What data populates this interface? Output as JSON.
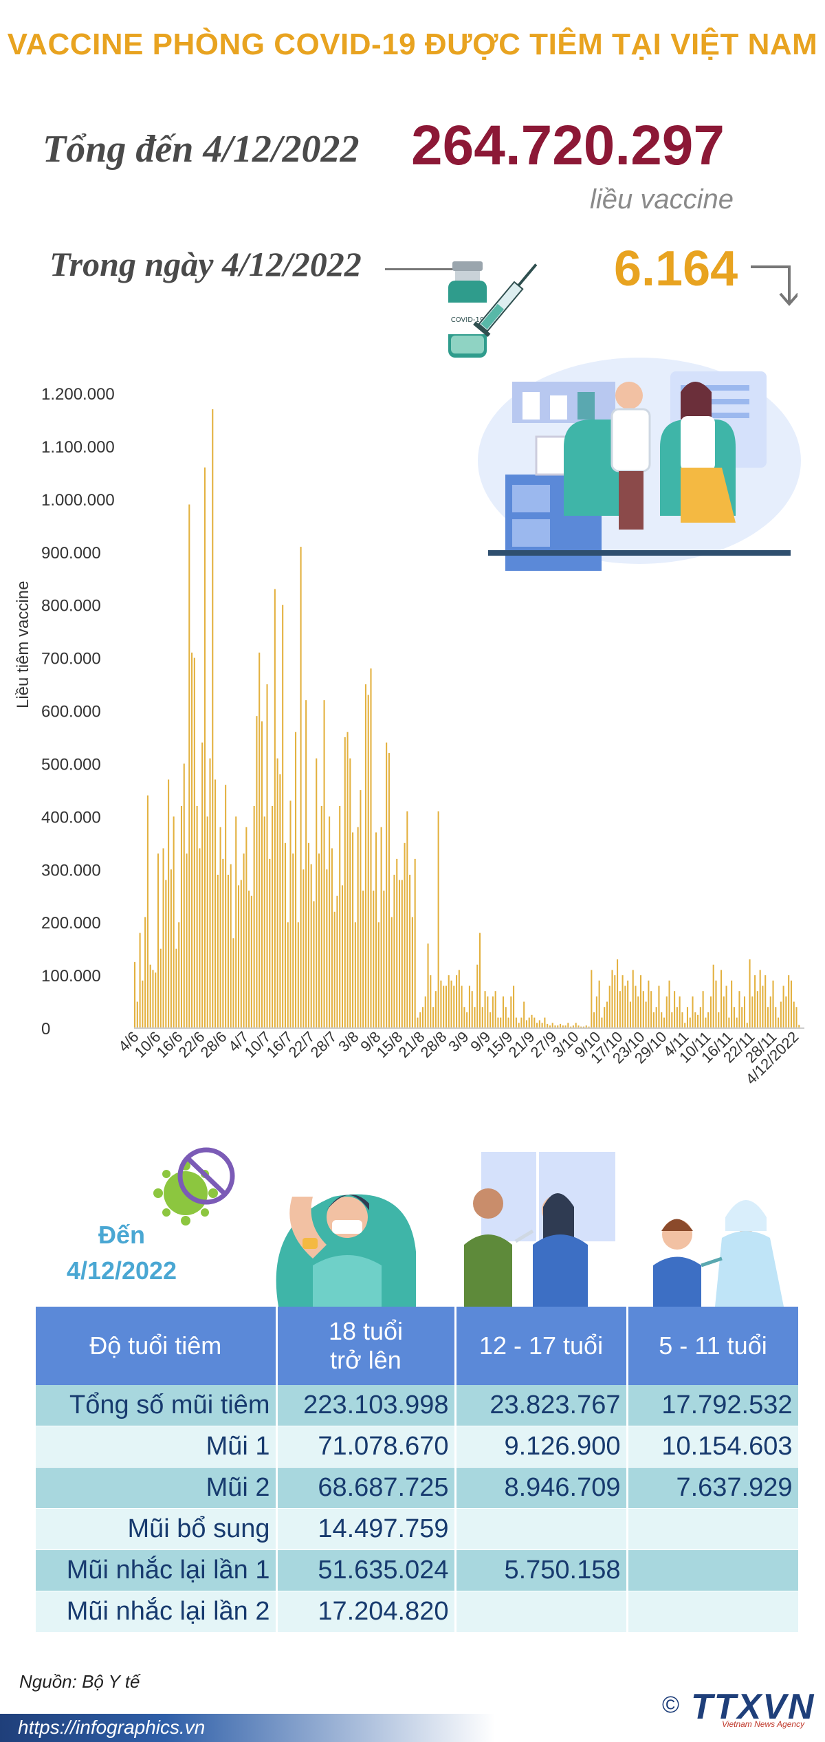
{
  "title": "VACCINE PHÒNG COVID-19 ĐƯỢC TIÊM TẠI VIỆT NAM",
  "summary": {
    "total_label": "Tổng đến 4/12/2022",
    "total_value": "264.720.297",
    "total_unit": "liều vaccine",
    "day_label": "Trong ngày 4/12/2022",
    "day_value": "6.164",
    "day_trend_icon": "arrow-down-icon"
  },
  "colors": {
    "title": "#e8a320",
    "total": "#8c1836",
    "bar": "#e3b13f",
    "table_header": "#5b89d8",
    "row_dark": "#a8d7de",
    "row_light": "#e4f5f7",
    "table_text": "#173a6e"
  },
  "chart_data": {
    "type": "bar",
    "ylabel": "Liều tiêm vaccine",
    "ylim": [
      0,
      1200000
    ],
    "ytick_labels": [
      "0",
      "100.000",
      "200.000",
      "300.000",
      "400.000",
      "500.000",
      "600.000",
      "700.000",
      "800.000",
      "900.000",
      "1.000.000",
      "1.100.000",
      "1.200.000"
    ],
    "xtick_labels": [
      "4/6",
      "10/6",
      "16/6",
      "22/6",
      "28/6",
      "4/7",
      "10/7",
      "16/7",
      "22/7",
      "28/7",
      "3/8",
      "9/8",
      "15/8",
      "21/8",
      "28/8",
      "3/9",
      "9/9",
      "15/9",
      "21/9",
      "27/9",
      "3/10",
      "9/10",
      "17/10",
      "23/10",
      "29/10",
      "4/11",
      "10/11",
      "16/11",
      "22/11",
      "28/11",
      "4/12/2022"
    ],
    "grid": false,
    "values": [
      125000,
      50000,
      180000,
      90000,
      210000,
      440000,
      120000,
      110000,
      105000,
      330000,
      150000,
      340000,
      280000,
      470000,
      300000,
      400000,
      150000,
      200000,
      420000,
      500000,
      330000,
      990000,
      710000,
      700000,
      420000,
      340000,
      540000,
      1060000,
      400000,
      510000,
      1170000,
      470000,
      290000,
      380000,
      320000,
      460000,
      290000,
      310000,
      170000,
      400000,
      270000,
      280000,
      330000,
      380000,
      260000,
      250000,
      420000,
      590000,
      710000,
      580000,
      400000,
      650000,
      320000,
      420000,
      830000,
      510000,
      480000,
      800000,
      350000,
      200000,
      430000,
      330000,
      560000,
      200000,
      910000,
      300000,
      620000,
      350000,
      310000,
      240000,
      510000,
      330000,
      420000,
      620000,
      300000,
      400000,
      340000,
      220000,
      250000,
      420000,
      270000,
      550000,
      560000,
      510000,
      370000,
      200000,
      380000,
      450000,
      260000,
      650000,
      630000,
      680000,
      260000,
      370000,
      200000,
      380000,
      260000,
      540000,
      520000,
      210000,
      290000,
      320000,
      280000,
      280000,
      350000,
      410000,
      290000,
      210000,
      320000,
      20000,
      30000,
      40000,
      60000,
      160000,
      100000,
      40000,
      70000,
      410000,
      90000,
      80000,
      80000,
      100000,
      90000,
      80000,
      100000,
      110000,
      80000,
      40000,
      30000,
      80000,
      70000,
      40000,
      120000,
      180000,
      40000,
      70000,
      60000,
      30000,
      60000,
      70000,
      20000,
      20000,
      60000,
      40000,
      20000,
      60000,
      80000,
      20000,
      10000,
      20000,
      50000,
      15000,
      20000,
      25000,
      20000,
      10000,
      15000,
      10000,
      20000,
      8000,
      5000,
      10000,
      5000,
      5000,
      8000,
      5000,
      5000,
      10000,
      3000,
      5000,
      10000,
      5000,
      3000,
      3000,
      5000,
      3000,
      110000,
      30000,
      60000,
      90000,
      20000,
      40000,
      50000,
      80000,
      110000,
      100000,
      130000,
      70000,
      100000,
      80000,
      90000,
      50000,
      110000,
      80000,
      60000,
      100000,
      70000,
      50000,
      90000,
      70000,
      30000,
      40000,
      80000,
      30000,
      20000,
      60000,
      90000,
      30000,
      70000,
      40000,
      60000,
      30000,
      10000,
      40000,
      20000,
      60000,
      30000,
      25000,
      40000,
      70000,
      20000,
      30000,
      60000,
      120000,
      90000,
      30000,
      110000,
      60000,
      80000,
      20000,
      90000,
      40000,
      20000,
      70000,
      40000,
      60000,
      10000,
      130000,
      60000,
      100000,
      70000,
      110000,
      80000,
      100000,
      40000,
      60000,
      90000,
      40000,
      20000,
      50000,
      80000,
      60000,
      100000,
      90000,
      50000,
      40000,
      6164
    ]
  },
  "age_section": {
    "until_label": "Đến",
    "until_date": "4/12/2022"
  },
  "table": {
    "headers": [
      "Độ tuổi tiêm",
      "18 tuổi\ntrở lên",
      "12 - 17 tuổi",
      "5 - 11 tuổi"
    ],
    "rows": [
      {
        "label": "Tổng số mũi tiêm",
        "values": [
          "223.103.998",
          "23.823.767",
          "17.792.532"
        ]
      },
      {
        "label": "Mũi 1",
        "values": [
          "71.078.670",
          "9.126.900",
          "10.154.603"
        ]
      },
      {
        "label": "Mũi 2",
        "values": [
          "68.687.725",
          "8.946.709",
          "7.637.929"
        ]
      },
      {
        "label": "Mũi bổ sung",
        "values": [
          "14.497.759",
          "",
          ""
        ]
      },
      {
        "label": "Mũi nhắc lại lần 1",
        "values": [
          "51.635.024",
          "5.750.158",
          ""
        ]
      },
      {
        "label": "Mũi nhắc lại lần 2",
        "values": [
          "17.204.820",
          "",
          ""
        ]
      }
    ]
  },
  "footer": {
    "source": "Nguồn: Bộ Y tế",
    "url": "https://infographics.vn",
    "logo": "TTXVN",
    "logo_copyright": "©",
    "logo_sub": "Vietnam News Agency"
  }
}
